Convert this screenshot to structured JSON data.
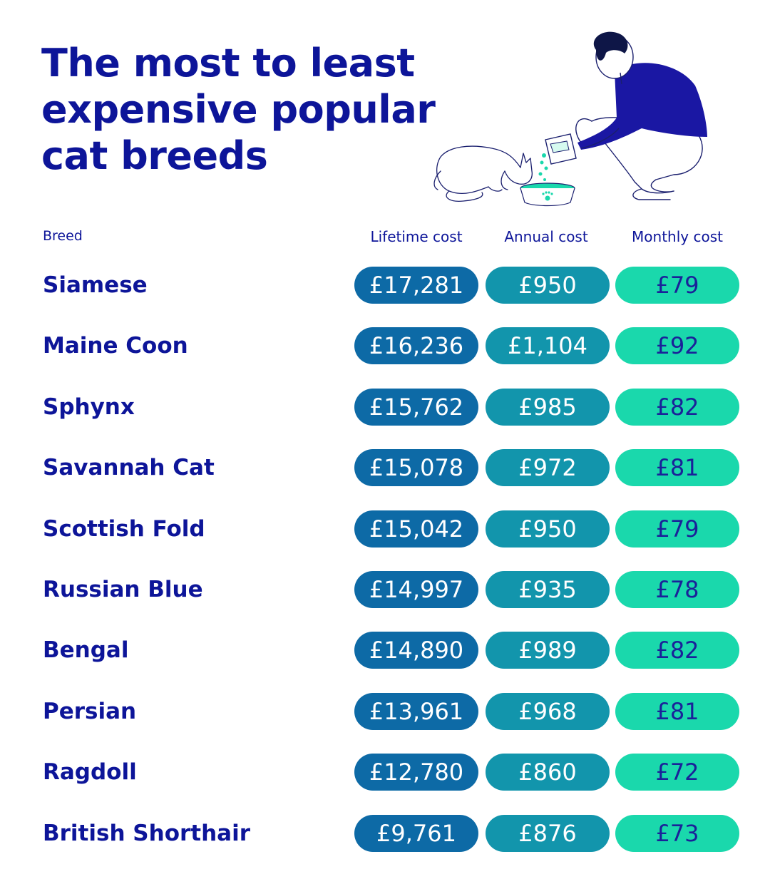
{
  "title": "The most to least expensive popular cat breeds",
  "columns": {
    "breed": "Breed",
    "lifetime": "Lifetime cost",
    "annual": "Annual cost",
    "monthly": "Monthly cost"
  },
  "colors": {
    "title": "#0d1599",
    "lifetime_pill": "#0d6aa6",
    "annual_pill": "#1295ac",
    "monthly_pill": "#1ad8ac"
  },
  "illustration": "person-feeding-cat-illustration",
  "chart_data": {
    "type": "table",
    "title": "The most to least expensive popular cat breeds",
    "columns": [
      "Breed",
      "Lifetime cost",
      "Annual cost",
      "Monthly cost"
    ],
    "rows": [
      {
        "breed": "Siamese",
        "lifetime": "£17,281",
        "annual": "£950",
        "monthly": "£79"
      },
      {
        "breed": "Maine Coon",
        "lifetime": "£16,236",
        "annual": "£1,104",
        "monthly": "£92"
      },
      {
        "breed": "Sphynx",
        "lifetime": "£15,762",
        "annual": "£985",
        "monthly": "£82"
      },
      {
        "breed": "Savannah Cat",
        "lifetime": "£15,078",
        "annual": "£972",
        "monthly": "£81"
      },
      {
        "breed": "Scottish Fold",
        "lifetime": "£15,042",
        "annual": "£950",
        "monthly": "£79"
      },
      {
        "breed": "Russian Blue",
        "lifetime": "£14,997",
        "annual": "£935",
        "monthly": "£78"
      },
      {
        "breed": "Bengal",
        "lifetime": "£14,890",
        "annual": "£989",
        "monthly": "£82"
      },
      {
        "breed": "Persian",
        "lifetime": "£13,961",
        "annual": "£968",
        "monthly": "£81"
      },
      {
        "breed": "Ragdoll",
        "lifetime": "£12,780",
        "annual": "£860",
        "monthly": "£72"
      },
      {
        "breed": "British Shorthair",
        "lifetime": "£9,761",
        "annual": "£876",
        "monthly": "£73"
      }
    ]
  }
}
